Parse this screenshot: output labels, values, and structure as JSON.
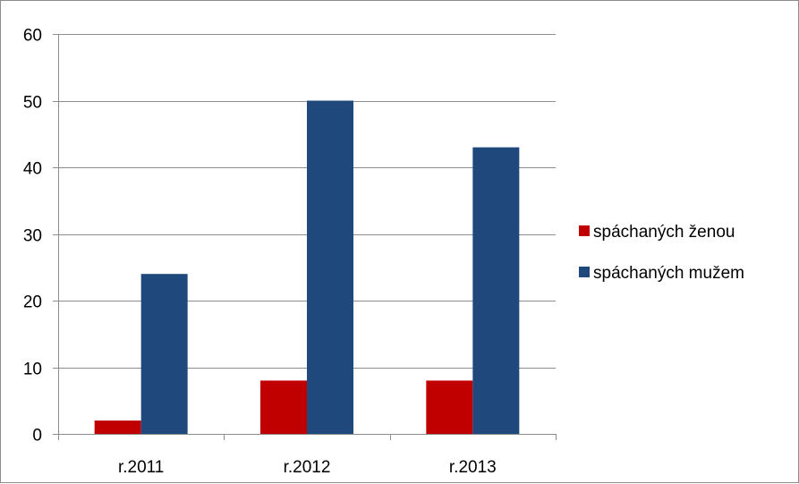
{
  "chart_data": {
    "type": "bar",
    "categories": [
      "r.2011",
      "r.2012",
      "r.2013"
    ],
    "series": [
      {
        "name": "spáchaných ženou",
        "values": [
          2,
          8,
          8
        ],
        "color": "#c00000"
      },
      {
        "name": "spáchaných mužem",
        "values": [
          24,
          50,
          43
        ],
        "color": "#1f497d"
      }
    ],
    "ylim": [
      0,
      60
    ],
    "yticks": [
      0,
      10,
      20,
      30,
      40,
      50,
      60
    ],
    "grid": true,
    "legend_position": "right",
    "title": "",
    "xlabel": "",
    "ylabel": ""
  }
}
